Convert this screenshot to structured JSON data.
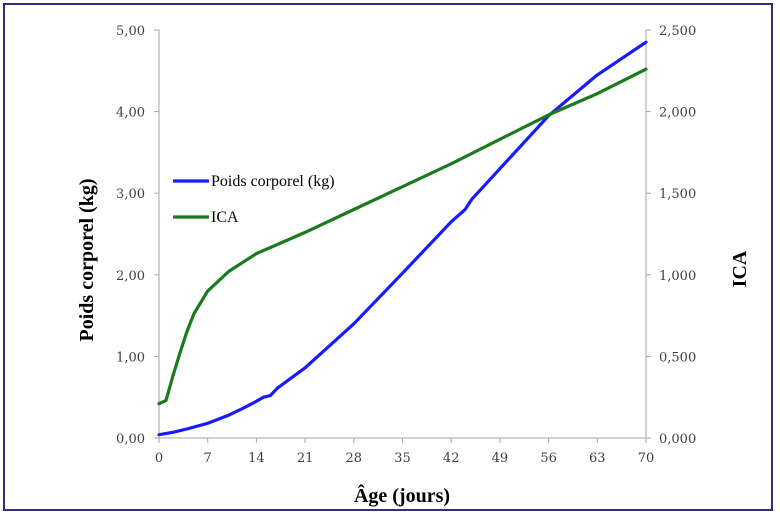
{
  "chart_data": {
    "type": "line",
    "xlabel": "Âge (jours)",
    "ylabel_left": "Poids corporel (kg)",
    "ylabel_right": "ICA",
    "xlim": [
      0,
      70
    ],
    "ylim_left": [
      0,
      5
    ],
    "ylim_right": [
      0,
      2.5
    ],
    "x_ticks": [
      "0",
      "7",
      "14",
      "21",
      "28",
      "35",
      "42",
      "49",
      "56",
      "63",
      "70"
    ],
    "y_left_ticks": [
      "0,00",
      "1,00",
      "2,00",
      "3,00",
      "4,00",
      "5,00"
    ],
    "y_right_ticks": [
      "0,000",
      "0,500",
      "1,000",
      "1,500",
      "2,000",
      "2,500"
    ],
    "grid": false,
    "legend_position": "left-middle",
    "series": [
      {
        "name": "Poids corporel (kg)",
        "axis": "left",
        "color": "#1a1aff",
        "x": [
          0,
          2,
          4,
          7,
          10,
          12,
          14,
          15,
          16,
          17,
          21,
          28,
          35,
          42,
          44,
          45,
          49,
          56,
          63,
          70
        ],
        "y": [
          0.04,
          0.07,
          0.11,
          0.18,
          0.28,
          0.36,
          0.45,
          0.5,
          0.52,
          0.61,
          0.86,
          1.4,
          2.02,
          2.65,
          2.8,
          2.93,
          3.3,
          3.95,
          4.45,
          4.85
        ]
      },
      {
        "name": "ICA",
        "axis": "right",
        "color": "#1b7a1b",
        "x": [
          0,
          1,
          2,
          3,
          4,
          5,
          7,
          10,
          14,
          21,
          28,
          35,
          42,
          49,
          56,
          63,
          70
        ],
        "y": [
          0.21,
          0.23,
          0.38,
          0.52,
          0.65,
          0.76,
          0.9,
          1.02,
          1.13,
          1.26,
          1.4,
          1.54,
          1.68,
          1.83,
          1.98,
          2.11,
          2.26
        ]
      }
    ]
  }
}
